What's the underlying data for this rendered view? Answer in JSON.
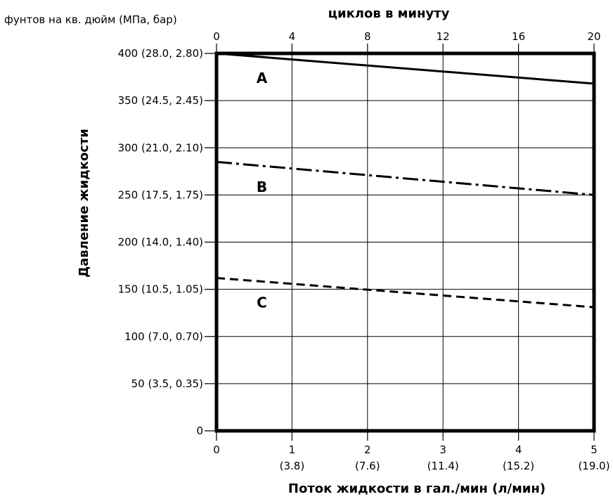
{
  "chart_data": {
    "type": "line",
    "title": "",
    "y_unit_label": "фунтов на кв. дюйм (МПа, бар)",
    "ylabel": "Давление жидкости",
    "xlabel": "Поток жидкости в гал./мин (л/мин)",
    "x2label": "циклов в минуту",
    "xlim": [
      0,
      5
    ],
    "ylim": [
      0,
      400
    ],
    "x2lim": [
      0,
      20
    ],
    "grid": true,
    "y_ticks": [
      {
        "value": 0,
        "label": "0"
      },
      {
        "value": 50,
        "label": "50 (3.5, 0.35)"
      },
      {
        "value": 100,
        "label": "100 (7.0, 0.70)"
      },
      {
        "value": 150,
        "label": "150 (10.5, 1.05)"
      },
      {
        "value": 200,
        "label": "200 (14.0, 1.40)"
      },
      {
        "value": 250,
        "label": "250 (17.5, 1.75)"
      },
      {
        "value": 300,
        "label": "300 (21.0, 2.10)"
      },
      {
        "value": 350,
        "label": "350 (24.5, 2.45)"
      },
      {
        "value": 400,
        "label": "400 (28.0, 2.80)"
      }
    ],
    "x_ticks": [
      {
        "value": 0,
        "label": "0",
        "sublabel": ""
      },
      {
        "value": 1,
        "label": "1",
        "sublabel": "(3.8)"
      },
      {
        "value": 2,
        "label": "2",
        "sublabel": "(7.6)"
      },
      {
        "value": 3,
        "label": "3",
        "sublabel": "(11.4)"
      },
      {
        "value": 4,
        "label": "4",
        "sublabel": "(15.2)"
      },
      {
        "value": 5,
        "label": "5",
        "sublabel": "(19.0)"
      }
    ],
    "x2_ticks": [
      {
        "value": 0,
        "label": "0"
      },
      {
        "value": 4,
        "label": "4"
      },
      {
        "value": 8,
        "label": "8"
      },
      {
        "value": 12,
        "label": "12"
      },
      {
        "value": 16,
        "label": "16"
      },
      {
        "value": 20,
        "label": "20"
      }
    ],
    "series": [
      {
        "name": "A",
        "style": "solid",
        "x": [
          0,
          5
        ],
        "y": [
          400,
          368
        ]
      },
      {
        "name": "B",
        "style": "dashdot",
        "x": [
          0,
          5
        ],
        "y": [
          285,
          250
        ]
      },
      {
        "name": "C",
        "style": "dashed",
        "x": [
          0,
          5
        ],
        "y": [
          162,
          131
        ]
      }
    ]
  }
}
